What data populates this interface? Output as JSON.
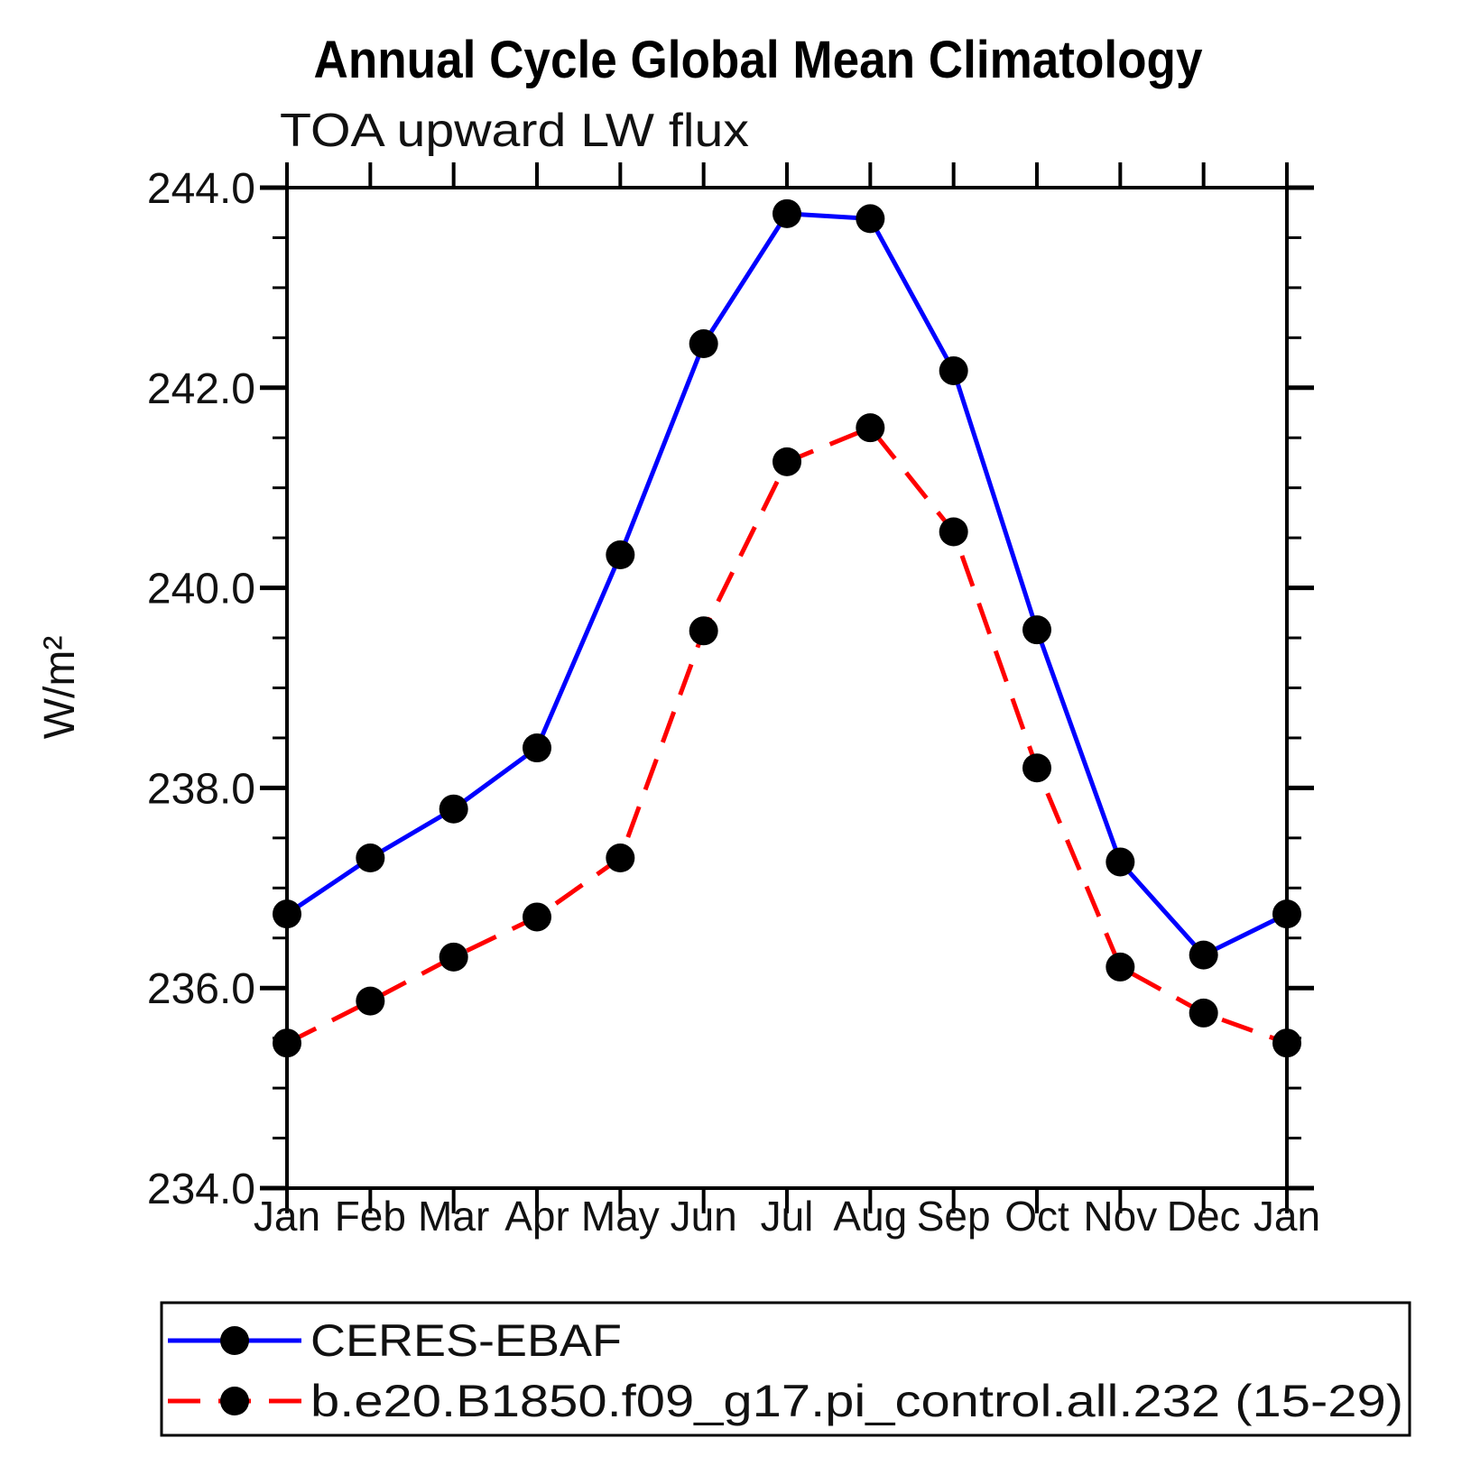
{
  "title": "Annual Cycle Global Mean Climatology",
  "subtitle": "TOA upward LW flux",
  "colors": {
    "obs_line": "#0000ff",
    "model_line": "#ff0000",
    "marker": "#000000",
    "frame": "#000000",
    "background": "#ffffff"
  },
  "legend": {
    "entries": [
      {
        "label": "CERES-EBAF",
        "line_style": "solid",
        "color": "#0000ff",
        "marker": "black-dot"
      },
      {
        "label": "b.e20.B1850.f09_g17.pi_control.all.232 (15-29)",
        "line_style": "dashed",
        "color": "#ff0000",
        "marker": "black-dot"
      }
    ]
  },
  "chart_data": {
    "type": "line",
    "title": "Annual Cycle Global Mean Climatology",
    "subtitle": "TOA upward LW flux",
    "xlabel": "",
    "ylabel": "W/m²",
    "categories": [
      "Jan",
      "Feb",
      "Mar",
      "Apr",
      "May",
      "Jun",
      "Jul",
      "Aug",
      "Sep",
      "Oct",
      "Nov",
      "Dec",
      "Jan"
    ],
    "ylim": [
      234.0,
      244.0
    ],
    "y_major_ticks": [
      234.0,
      236.0,
      238.0,
      240.0,
      242.0,
      244.0
    ],
    "y_tick_labels": [
      "234.0",
      "236.0",
      "238.0",
      "240.0",
      "242.0",
      "244.0"
    ],
    "y_minor_step": 0.5,
    "grid": false,
    "legend_position": "bottom-left-box",
    "series": [
      {
        "name": "CERES-EBAF",
        "color": "#0000ff",
        "style": "solid",
        "marker": "black-dot",
        "values": [
          236.74,
          237.3,
          237.79,
          238.4,
          240.33,
          242.44,
          243.74,
          243.69,
          242.17,
          239.58,
          237.26,
          236.33,
          236.74
        ]
      },
      {
        "name": "b.e20.B1850.f09_g17.pi_control.all.232 (15-29)",
        "color": "#ff0000",
        "style": "dashed",
        "marker": "black-dot",
        "values": [
          235.45,
          235.87,
          236.31,
          236.71,
          237.3,
          239.57,
          241.26,
          241.6,
          240.56,
          238.2,
          236.21,
          235.75,
          235.45
        ]
      }
    ]
  }
}
